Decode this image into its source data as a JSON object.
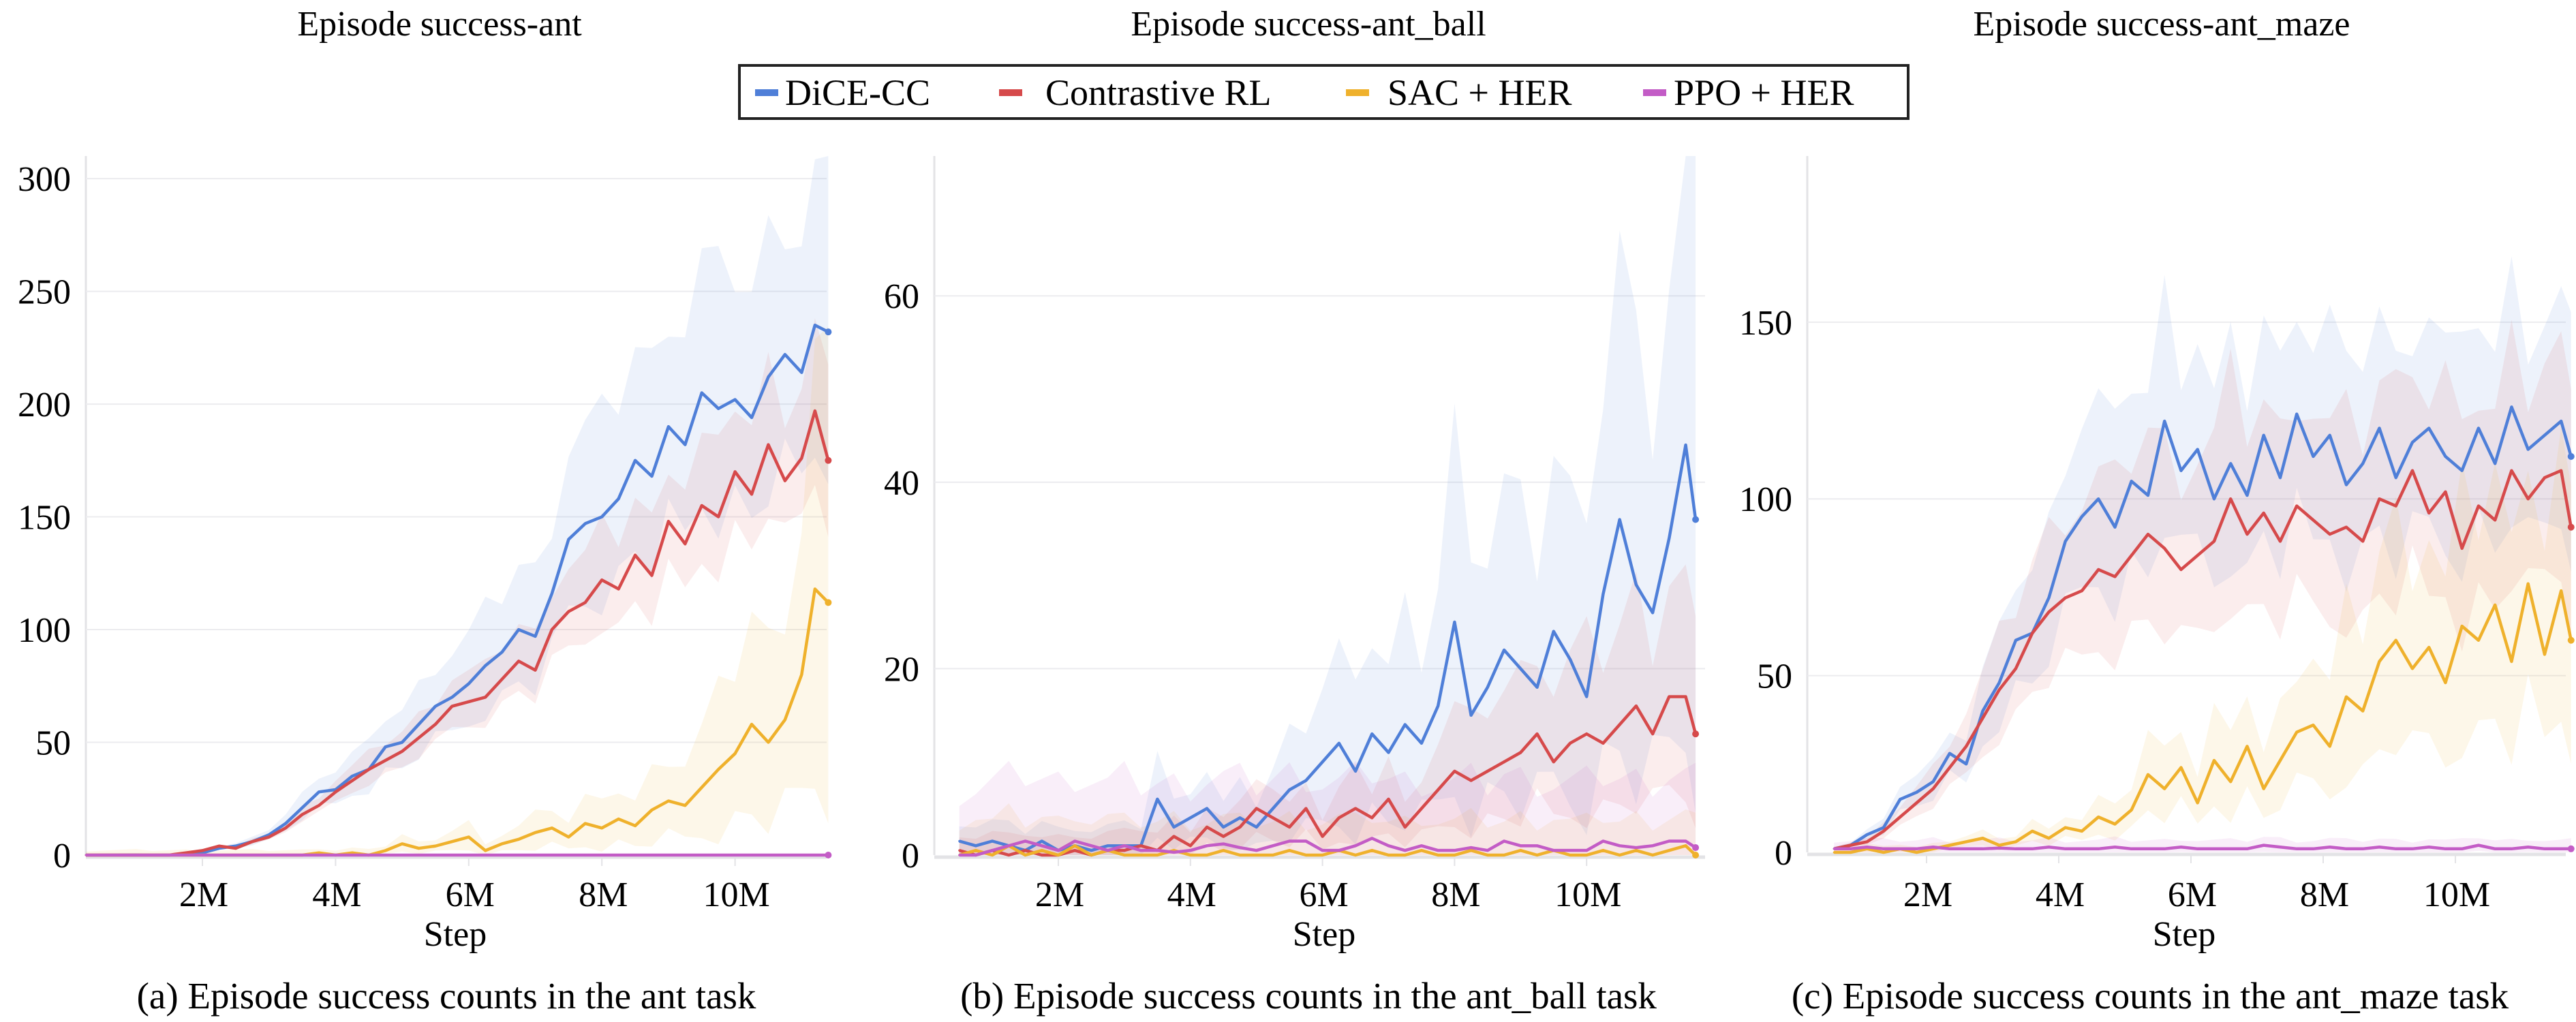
{
  "legend": {
    "entries": [
      {
        "name": "DiCE-CC",
        "color": "#4f7fd8"
      },
      {
        "name": "Contrastive RL",
        "color": "#d64a4b"
      },
      {
        "name": "SAC + HER",
        "color": "#efb12c"
      },
      {
        "name": "PPO + HER",
        "color": "#c35cc6"
      }
    ]
  },
  "chart_data": [
    {
      "type": "line",
      "title": "Episode success-ant",
      "caption": "(a) Episode success counts in the ant task",
      "xlabel": "Step",
      "ylabel": "",
      "xlim": [
        0.25,
        11.45
      ],
      "ylim": [
        0,
        310
      ],
      "xticks": [
        2,
        4,
        6,
        8,
        10
      ],
      "xtick_labels": [
        "2M",
        "4M",
        "6M",
        "8M",
        "10M"
      ],
      "yticks": [
        0,
        50,
        100,
        150,
        200,
        250,
        300
      ],
      "ytick_labels": [
        "0",
        "50",
        "100",
        "150",
        "200",
        "250",
        "300"
      ],
      "grid": true,
      "x": [
        0.25,
        0.5,
        0.75,
        1,
        1.25,
        1.5,
        1.75,
        2,
        2.25,
        2.5,
        2.75,
        3,
        3.25,
        3.5,
        3.75,
        4,
        4.25,
        4.5,
        4.75,
        5,
        5.25,
        5.5,
        5.75,
        6,
        6.25,
        6.5,
        6.75,
        7,
        7.25,
        7.5,
        7.75,
        8,
        8.25,
        8.5,
        8.75,
        9,
        9.25,
        9.5,
        9.75,
        10,
        10.25,
        10.5,
        10.75,
        11,
        11.2,
        11.4
      ],
      "series": [
        {
          "name": "DiCE-CC",
          "band": 0.3,
          "values": [
            0,
            0,
            0,
            0,
            0,
            0,
            0.5,
            1,
            3,
            4,
            6,
            9,
            14,
            21,
            28,
            29,
            35,
            38,
            48,
            50,
            58,
            66,
            70,
            76,
            84,
            90,
            100,
            97,
            116,
            140,
            147,
            150,
            158,
            175,
            168,
            190,
            182,
            205,
            198,
            202,
            194,
            212,
            222,
            214,
            235,
            232
          ]
        },
        {
          "name": "Contrastive RL",
          "band": 0.2,
          "values": [
            0,
            0,
            0,
            0,
            0,
            0,
            1,
            2,
            4,
            3,
            6,
            8,
            12,
            18,
            22,
            28,
            33,
            38,
            42,
            46,
            52,
            58,
            66,
            68,
            70,
            78,
            86,
            82,
            100,
            108,
            112,
            122,
            118,
            133,
            124,
            148,
            138,
            155,
            150,
            170,
            160,
            182,
            166,
            176,
            197,
            175
          ]
        },
        {
          "name": "SAC + HER",
          "band": 0.9,
          "values": [
            0,
            0,
            0,
            0,
            0,
            0,
            0,
            0,
            0,
            0,
            0,
            0,
            0,
            0,
            1,
            0,
            1,
            0,
            2,
            5,
            3,
            4,
            6,
            8,
            2,
            5,
            7,
            10,
            12,
            8,
            14,
            12,
            16,
            13,
            20,
            24,
            22,
            30,
            38,
            45,
            58,
            50,
            60,
            80,
            118,
            112
          ]
        },
        {
          "name": "PPO + HER",
          "band": 0.0,
          "values": [
            0,
            0,
            0,
            0,
            0,
            0,
            0,
            0,
            0,
            0,
            0,
            0,
            0,
            0,
            0,
            0,
            0,
            0,
            0,
            0,
            0,
            0,
            0,
            0,
            0,
            0,
            0,
            0,
            0,
            0,
            0,
            0,
            0,
            0,
            0,
            0,
            0,
            0,
            0,
            0,
            0,
            0,
            0,
            0,
            0,
            0
          ]
        }
      ]
    },
    {
      "type": "line",
      "title": "Episode success-ant_ball",
      "caption": "(b) Episode success counts in the ant_ball task",
      "xlabel": "Step",
      "ylabel": "",
      "xlim": [
        0.25,
        11.75
      ],
      "ylim": [
        0,
        75
      ],
      "xticks": [
        2,
        4,
        6,
        8,
        10
      ],
      "xtick_labels": [
        "2M",
        "4M",
        "6M",
        "8M",
        "10M"
      ],
      "yticks": [
        0,
        20,
        40,
        60
      ],
      "ytick_labels": [
        "0",
        "20",
        "40",
        "60"
      ],
      "grid": true,
      "x": [
        0.5,
        0.75,
        1,
        1.25,
        1.5,
        1.75,
        2,
        2.25,
        2.5,
        2.75,
        3,
        3.25,
        3.5,
        3.75,
        4,
        4.25,
        4.5,
        4.75,
        5,
        5.25,
        5.5,
        5.75,
        6,
        6.25,
        6.5,
        6.75,
        7,
        7.25,
        7.5,
        7.75,
        8,
        8.25,
        8.5,
        8.75,
        9,
        9.25,
        9.5,
        9.75,
        10,
        10.25,
        10.5,
        10.75,
        11,
        11.25,
        11.5,
        11.65
      ],
      "series": [
        {
          "name": "DiCE-CC",
          "band": 0.9,
          "values": [
            1.5,
            1,
            1.5,
            1,
            0.5,
            1.5,
            0.5,
            1,
            0.5,
            1,
            1,
            1,
            6,
            3,
            4,
            5,
            3,
            4,
            3,
            5,
            7,
            8,
            10,
            12,
            9,
            13,
            11,
            14,
            12,
            16,
            25,
            15,
            18,
            22,
            20,
            18,
            24,
            21,
            17,
            28,
            36,
            29,
            26,
            34,
            44,
            36
          ]
        },
        {
          "name": "Contrastive RL",
          "band": 0.8,
          "values": [
            0.5,
            0,
            0.5,
            0,
            0.5,
            0,
            0,
            0.5,
            0,
            0.5,
            0.5,
            1,
            0.5,
            2,
            1,
            3,
            2,
            3,
            5,
            4,
            3,
            5,
            2,
            4,
            5,
            4,
            6,
            3,
            5,
            7,
            9,
            8,
            9,
            10,
            11,
            13,
            10,
            12,
            13,
            12,
            14,
            16,
            13,
            17,
            17,
            13
          ]
        },
        {
          "name": "SAC + HER",
          "band": 1.5,
          "values": [
            0,
            0.5,
            0,
            1,
            0,
            0.5,
            0,
            1,
            0,
            0.5,
            0,
            0,
            0,
            0.5,
            0,
            0,
            0.5,
            0,
            0,
            0,
            0.5,
            0,
            0,
            0.5,
            0,
            0.5,
            0,
            0,
            0.5,
            0,
            0,
            0.5,
            0,
            0,
            0.5,
            0,
            0.5,
            0,
            0,
            0.5,
            0,
            0.5,
            0,
            0.5,
            1,
            0
          ]
        },
        {
          "name": "PPO + HER",
          "band": 3.0,
          "values": [
            0,
            0,
            0.5,
            1,
            1.5,
            1,
            0.5,
            1.5,
            1,
            0.5,
            1,
            0.5,
            0.5,
            0.3,
            0.5,
            1,
            1.2,
            0.8,
            0.5,
            1,
            1.5,
            1.5,
            0.5,
            0.5,
            1,
            1.8,
            1,
            0.5,
            1,
            0.5,
            0.5,
            0.8,
            0.5,
            1.5,
            1,
            1,
            0.5,
            0.5,
            0.5,
            1.5,
            1,
            0.8,
            1,
            1.5,
            1.5,
            0.8
          ]
        }
      ]
    },
    {
      "type": "line",
      "title": "Episode success-ant_maze",
      "caption": "(c) Episode success counts in the ant_maze task",
      "xlabel": "Step",
      "ylabel": "",
      "xlim": [
        0.25,
        11.8
      ],
      "ylim": [
        0,
        197
      ],
      "xticks": [
        2,
        4,
        6,
        8,
        10
      ],
      "xtick_labels": [
        "2M",
        "4M",
        "6M",
        "8M",
        "10M"
      ],
      "yticks": [
        0,
        50,
        100,
        150
      ],
      "ytick_labels": [
        "0",
        "50",
        "100",
        "150"
      ],
      "grid": true,
      "x": [
        0.6,
        0.85,
        1.1,
        1.35,
        1.6,
        1.85,
        2.1,
        2.35,
        2.6,
        2.85,
        3.1,
        3.35,
        3.6,
        3.85,
        4.1,
        4.35,
        4.6,
        4.85,
        5.1,
        5.35,
        5.6,
        5.85,
        6.1,
        6.35,
        6.6,
        6.85,
        7.1,
        7.35,
        7.6,
        7.85,
        8.1,
        8.35,
        8.6,
        8.85,
        9.1,
        9.35,
        9.6,
        9.85,
        10.1,
        10.35,
        10.6,
        10.85,
        11.1,
        11.35,
        11.6,
        11.75
      ],
      "series": [
        {
          "name": "DiCE-CC",
          "band": 0.3,
          "values": [
            1,
            2,
            5,
            7,
            15,
            17,
            20,
            28,
            25,
            40,
            48,
            60,
            62,
            72,
            88,
            95,
            100,
            92,
            105,
            101,
            122,
            108,
            114,
            100,
            110,
            101,
            118,
            106,
            124,
            112,
            118,
            104,
            110,
            120,
            106,
            116,
            120,
            112,
            108,
            120,
            110,
            126,
            114,
            118,
            122,
            112
          ]
        },
        {
          "name": "Contrastive RL",
          "band": 0.35,
          "values": [
            1,
            2,
            3,
            6,
            10,
            14,
            18,
            24,
            30,
            38,
            46,
            52,
            62,
            68,
            72,
            74,
            80,
            78,
            84,
            90,
            86,
            80,
            84,
            88,
            100,
            90,
            96,
            88,
            98,
            94,
            90,
            92,
            88,
            100,
            98,
            108,
            96,
            102,
            86,
            98,
            94,
            108,
            100,
            106,
            108,
            92
          ]
        },
        {
          "name": "SAC + HER",
          "band": 0.6,
          "values": [
            0,
            0,
            1,
            0,
            1,
            0,
            1,
            2,
            3,
            4,
            2,
            3,
            6,
            4,
            7,
            6,
            10,
            8,
            12,
            22,
            18,
            24,
            14,
            26,
            20,
            30,
            18,
            26,
            34,
            36,
            30,
            44,
            40,
            54,
            60,
            52,
            58,
            48,
            64,
            60,
            70,
            54,
            76,
            56,
            74,
            60
          ]
        },
        {
          "name": "PPO + HER",
          "band": 1.0,
          "values": [
            1,
            1,
            1.5,
            1,
            1,
            1,
            1.5,
            1,
            1,
            1,
            1.2,
            1,
            1,
            1.5,
            1,
            1,
            1,
            1.5,
            1,
            1,
            1,
            1.5,
            1,
            1,
            1,
            1,
            2,
            1.5,
            1,
            1,
            1.5,
            1,
            1,
            1.5,
            1,
            1,
            1.5,
            1,
            1,
            2,
            1,
            1,
            1.5,
            1,
            1,
            1
          ]
        }
      ]
    }
  ]
}
